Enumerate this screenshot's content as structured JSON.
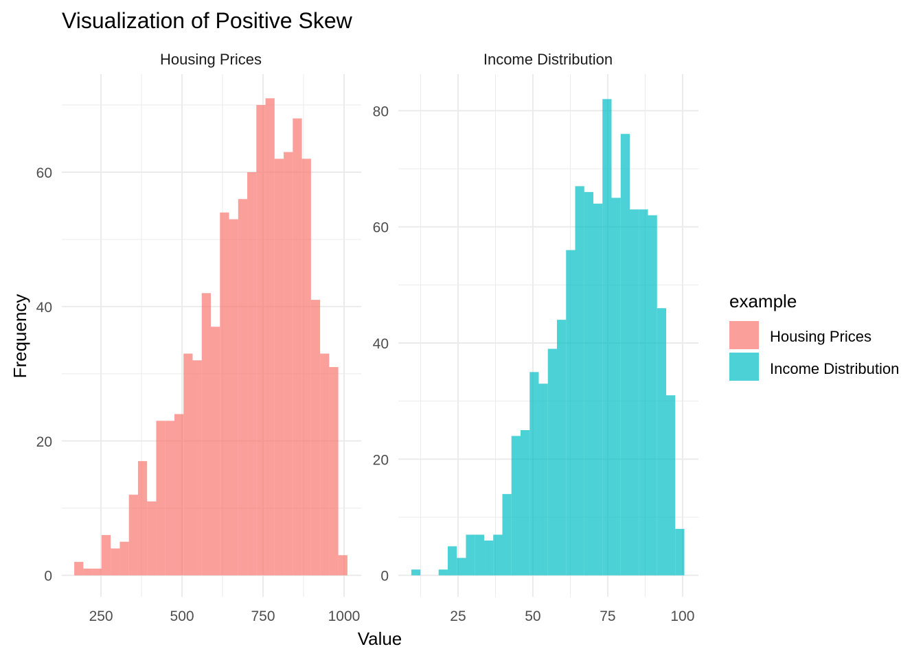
{
  "chart_data": {
    "title": "Visualization of Positive Skew",
    "xlabel": "Value",
    "ylabel": "Frequency",
    "legend": {
      "title": "example",
      "position": "right",
      "entries": [
        {
          "label": "Housing Prices",
          "color": "#F8766D"
        },
        {
          "label": "Income Distribution",
          "color": "#00BFC4"
        }
      ]
    },
    "grid": true,
    "panels": [
      {
        "type": "bar",
        "name": "Housing Prices",
        "color": "#F8766D",
        "bin_start": 167.4,
        "bin_width": 28.1,
        "values": [
          2,
          1,
          1,
          6,
          4,
          5,
          12,
          17,
          11,
          23,
          23,
          24,
          33,
          32,
          42,
          37,
          54,
          53,
          56,
          60,
          70,
          71,
          62,
          63,
          68,
          62,
          41,
          33,
          31,
          3
        ],
        "xlim": [
          129,
          1053
        ],
        "ylim": [
          -3.2,
          74.6
        ],
        "xticks": [
          250,
          500,
          750,
          1000
        ],
        "yticks": [
          0,
          20,
          40,
          60
        ]
      },
      {
        "type": "bar",
        "name": "Income Distribution",
        "color": "#00BFC4",
        "bin_start": 9.4,
        "bin_width": 3.04,
        "values": [
          1,
          0,
          0,
          1,
          5,
          3,
          7,
          7,
          6,
          7,
          14,
          24,
          25,
          35,
          33,
          39,
          44,
          56,
          67,
          66,
          64,
          82,
          65,
          76,
          63,
          63,
          62,
          46,
          31,
          8
        ],
        "xlim": [
          5.05,
          105.3
        ],
        "ylim": [
          -3.7,
          86.3
        ],
        "xticks": [
          25,
          50,
          75,
          100
        ],
        "yticks": [
          0,
          20,
          40,
          60,
          80
        ]
      }
    ]
  }
}
